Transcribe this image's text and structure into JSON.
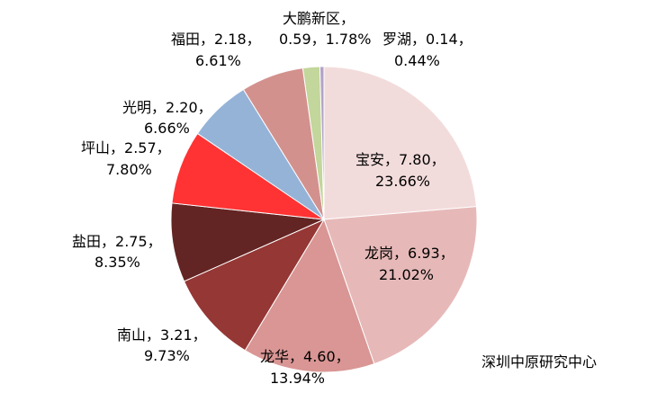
{
  "chart_data": {
    "type": "pie",
    "slices": [
      {
        "name": "宝安",
        "value": 7.8,
        "percent": 23.66,
        "color": "#F2DCDB"
      },
      {
        "name": "龙岗",
        "value": 6.93,
        "percent": 21.02,
        "color": "#E6B9B8"
      },
      {
        "name": "龙华",
        "value": 4.6,
        "percent": 13.94,
        "color": "#D99694"
      },
      {
        "name": "南山",
        "value": 3.21,
        "percent": 9.73,
        "color": "#953735"
      },
      {
        "name": "盐田",
        "value": 2.75,
        "percent": 8.35,
        "color": "#632523"
      },
      {
        "name": "坪山",
        "value": 2.57,
        "percent": 7.8,
        "color": "#FF3333"
      },
      {
        "name": "光明",
        "value": 2.2,
        "percent": 6.66,
        "color": "#95B3D7"
      },
      {
        "name": "福田",
        "value": 2.18,
        "percent": 6.61,
        "color": "#D3918E"
      },
      {
        "name": "大鹏新区",
        "value": 0.59,
        "percent": 1.78,
        "color": "#C3D69B"
      },
      {
        "name": "罗湖",
        "value": 0.14,
        "percent": 0.44,
        "color": "#B3A2C7"
      }
    ],
    "source": "深圳中原研究中心"
  }
}
